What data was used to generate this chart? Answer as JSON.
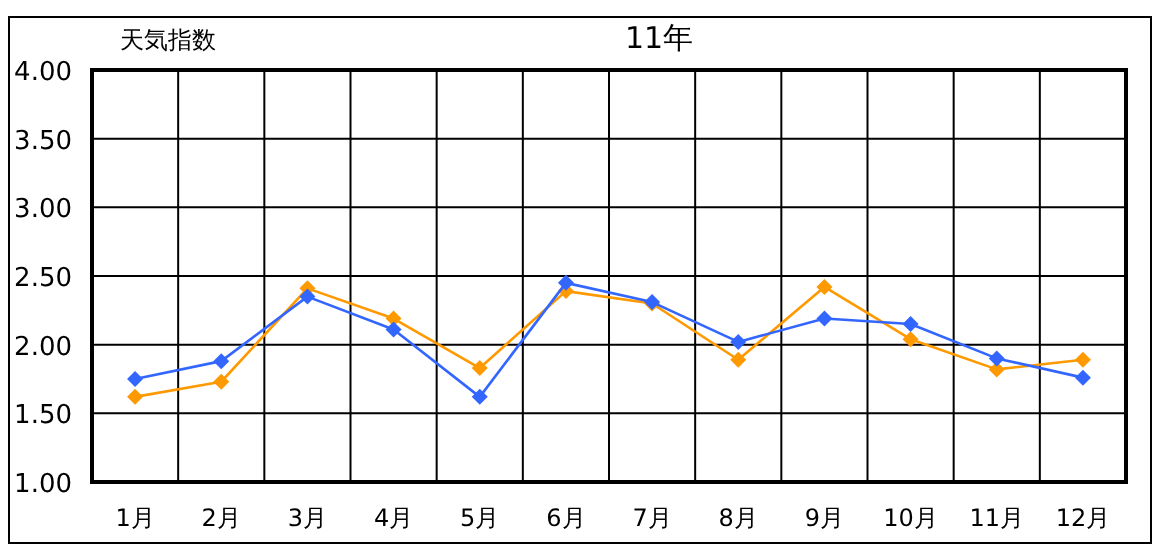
{
  "chart_data": {
    "type": "line",
    "title": "11年",
    "ylabel": "天気指数",
    "categories": [
      "1月",
      "2月",
      "3月",
      "4月",
      "5月",
      "6月",
      "7月",
      "8月",
      "9月",
      "10月",
      "11月",
      "12月"
    ],
    "series": [
      {
        "color": "#3366ff",
        "values": [
          1.75,
          1.88,
          2.35,
          2.11,
          1.62,
          2.45,
          2.31,
          2.02,
          2.19,
          2.15,
          1.9,
          1.76
        ]
      },
      {
        "color": "#ff9900",
        "values": [
          1.62,
          1.73,
          2.41,
          2.19,
          1.83,
          2.39,
          2.3,
          1.89,
          2.42,
          2.04,
          1.82,
          1.89
        ]
      }
    ],
    "ylim": [
      1,
      4
    ],
    "yticks": [
      {
        "value": 1,
        "label": "1.00"
      },
      {
        "value": 1.5,
        "label": "1.50"
      },
      {
        "value": 2,
        "label": "2.00"
      },
      {
        "value": 2.5,
        "label": "2.50"
      },
      {
        "value": 3,
        "label": "3.00"
      },
      {
        "value": 3.5,
        "label": "3.50"
      },
      {
        "value": 4,
        "label": "4.00"
      }
    ],
    "grid": true,
    "marker": "diamond",
    "line_style": "solid"
  }
}
